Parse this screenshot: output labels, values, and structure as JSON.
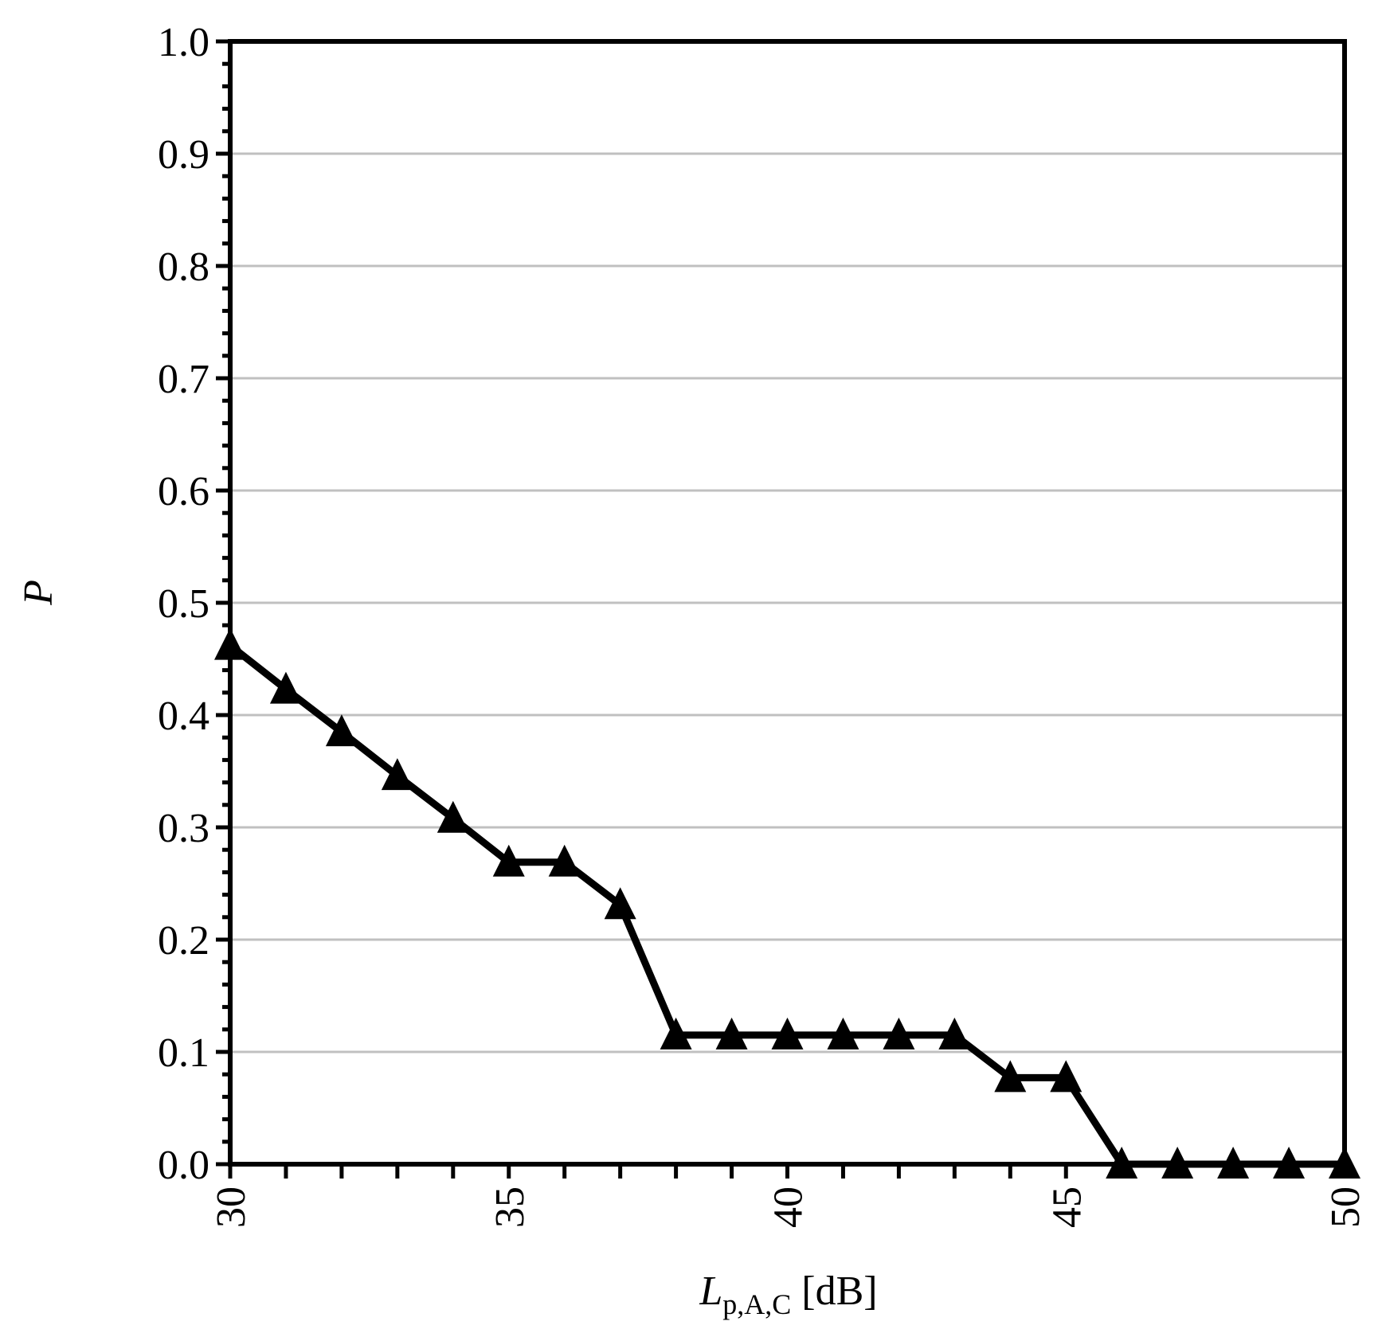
{
  "chart_data": {
    "type": "line",
    "title": "",
    "xlabel_main": "L",
    "xlabel_sub": "p,A,C",
    "xlabel_unit": " [dB]",
    "ylabel": "P",
    "xlim": [
      30,
      50
    ],
    "ylim": [
      0,
      1
    ],
    "x_ticks": [
      30,
      35,
      40,
      45,
      50
    ],
    "x_tick_labels": [
      "30",
      "35",
      "40",
      "45",
      "50"
    ],
    "y_ticks": [
      0.0,
      0.1,
      0.2,
      0.3,
      0.4,
      0.5,
      0.6,
      0.7,
      0.8,
      0.9,
      1.0
    ],
    "y_tick_labels": [
      "0.0",
      "0.1",
      "0.2",
      "0.3",
      "0.4",
      "0.5",
      "0.6",
      "0.7",
      "0.8",
      "0.9",
      "1.0"
    ],
    "grid": "horizontal",
    "marker": "triangle",
    "colors": {
      "line": "#000000",
      "grid": "#c0c0c0",
      "axis": "#000000"
    },
    "series": [
      {
        "x": [
          30,
          31,
          32,
          33,
          34,
          35,
          36,
          37,
          38,
          39,
          40,
          41,
          42,
          43,
          44,
          45,
          46,
          47,
          48,
          49,
          50
        ],
        "y": [
          0.462,
          0.423,
          0.385,
          0.346,
          0.308,
          0.269,
          0.269,
          0.231,
          0.115,
          0.115,
          0.115,
          0.115,
          0.115,
          0.115,
          0.077,
          0.077,
          0.0,
          0.0,
          0.0,
          0.0,
          0.0
        ]
      }
    ]
  }
}
